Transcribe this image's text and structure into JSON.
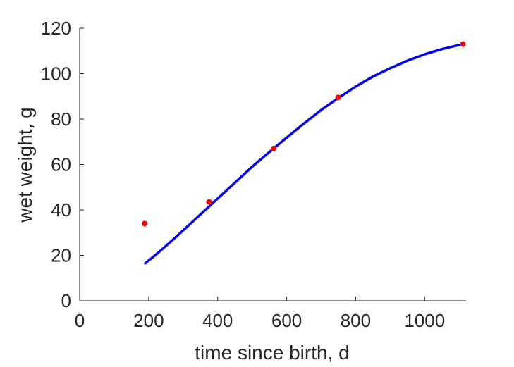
{
  "chart_data": {
    "type": "scatter",
    "title": "",
    "xlabel": "time since birth, d",
    "ylabel": "wet weight, g",
    "xlim": [
      0,
      1120
    ],
    "ylim": [
      0,
      120
    ],
    "xticks": [
      0,
      200,
      400,
      600,
      800,
      1000
    ],
    "yticks": [
      0,
      20,
      40,
      60,
      80,
      100,
      120
    ],
    "grid": false,
    "legend": "none",
    "series": [
      {
        "kind": "scatter",
        "color": "#ff0000",
        "x": [
          188,
          375,
          562,
          749,
          1111
        ],
        "y": [
          34,
          43.5,
          67,
          89.5,
          113
        ]
      },
      {
        "kind": "line",
        "color": "#0000ff",
        "x": [
          190,
          220,
          260,
          300,
          350,
          400,
          450,
          500,
          550,
          600,
          650,
          700,
          750,
          800,
          850,
          900,
          950,
          1000,
          1050,
          1111
        ],
        "y": [
          16.5,
          20.2,
          25.5,
          31,
          38,
          45,
          52,
          59,
          65.5,
          71.8,
          78,
          84,
          89.3,
          94.3,
          98.7,
          102.4,
          105.7,
          108.5,
          110.8,
          113
        ]
      }
    ]
  }
}
